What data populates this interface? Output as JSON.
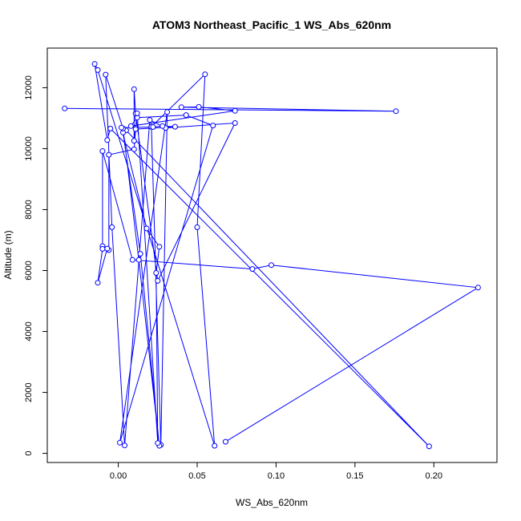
{
  "chart_data": {
    "type": "scatter",
    "title": "ATOM3 Northeast_Pacific_1 WS_Abs_620nm",
    "xlabel": "WS_Abs_620nm",
    "ylabel": "Altitude (m)",
    "xlim": [
      -0.045,
      0.24
    ],
    "ylim": [
      -300,
      13300
    ],
    "xticks": [
      0.0,
      0.05,
      0.1,
      0.15,
      0.2
    ],
    "xtick_labels": [
      "0.00",
      "0.05",
      "0.10",
      "0.15",
      "0.20"
    ],
    "yticks": [
      0,
      2000,
      4000,
      6000,
      8000,
      10000,
      12000
    ],
    "ytick_labels": [
      "0",
      "2000",
      "4000",
      "6000",
      "8000",
      "10000",
      "12000"
    ],
    "grid": false,
    "series": [
      {
        "color": "#0000ff",
        "marker": "circle-open",
        "connect": true,
        "x": [
          -0.034,
          0.176,
          0.04,
          0.051,
          0.074,
          0.008,
          0.012,
          0.043,
          0.06,
          0.001,
          0.031,
          0.027,
          0.021,
          0.055,
          0.05,
          0.061,
          -0.013,
          -0.015,
          -0.007,
          -0.005,
          0.197,
          0.005,
          0.003,
          0.014,
          0.026,
          0.013,
          0.003,
          -0.008,
          -0.004,
          0.004,
          0.02,
          0.03,
          0.074,
          0.025,
          0.011,
          0.01,
          0.01,
          0.012,
          0.025,
          0.024,
          0.026,
          0.018,
          0.002,
          0.022,
          0.028,
          0.036,
          0.011,
          0.01,
          -0.006,
          -0.006,
          -0.01,
          -0.007,
          -0.013,
          -0.01,
          -0.01,
          0.009,
          0.085,
          0.097,
          0.228,
          0.068
        ],
        "y": [
          11320,
          11230,
          11360,
          11370,
          11240,
          10740,
          11020,
          11100,
          10760,
          350,
          11200,
          280,
          10720,
          12440,
          7420,
          250,
          12580,
          12780,
          10280,
          10660,
          230,
          10600,
          10530,
          6550,
          250,
          6350,
          10660,
          12430,
          7420,
          260,
          10940,
          10680,
          10840,
          5660,
          11150,
          11950,
          10260,
          11160,
          340,
          5920,
          6780,
          7380,
          10690,
          10710,
          10740,
          10720,
          10640,
          9980,
          9800,
          6670,
          6800,
          6720,
          5600,
          6710,
          9920,
          6350,
          6050,
          6180,
          5440,
          380
        ]
      }
    ]
  }
}
